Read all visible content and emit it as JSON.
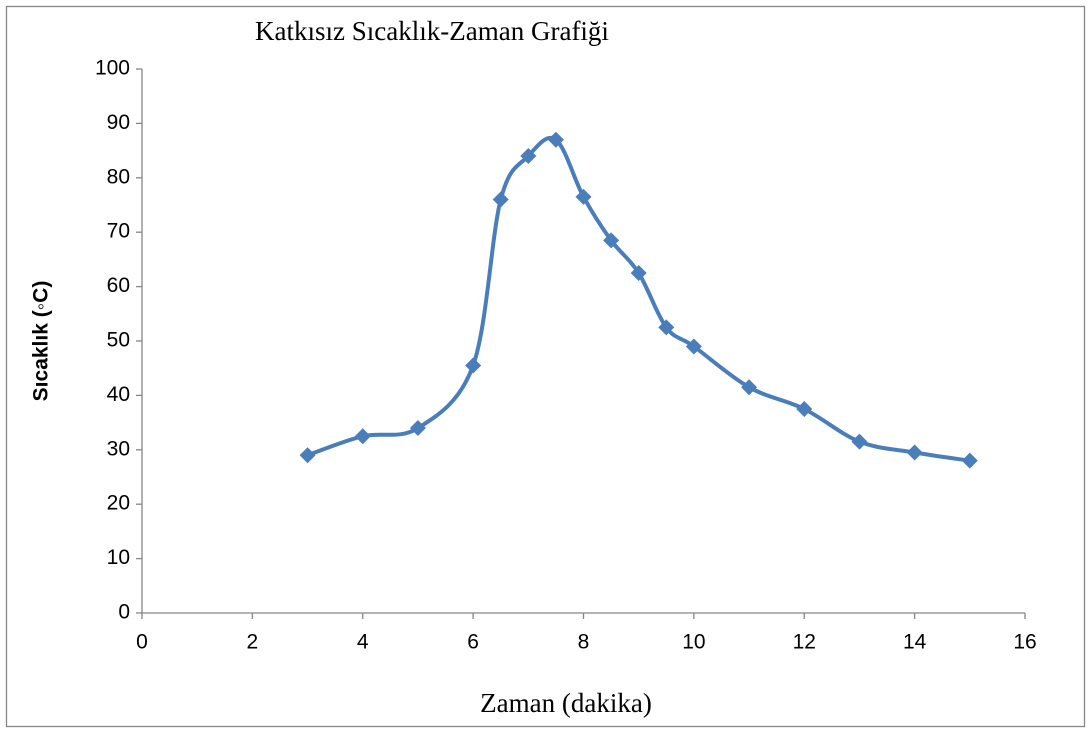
{
  "chart_data": {
    "type": "scatter",
    "title": "Katkısız Sıcaklık-Zaman Grafiği",
    "x_label": "Zaman (dakika)",
    "y_label": "Sıcaklık (◦C)",
    "series": [
      {
        "name": "Sıcaklık",
        "color": "#4a7ebb",
        "x": [
          3,
          4,
          5,
          6,
          6.5,
          7,
          7.5,
          8,
          8.5,
          9,
          9.5,
          10,
          11,
          12,
          13,
          14,
          15
        ],
        "values": [
          29,
          32.5,
          34,
          45.5,
          76,
          84,
          87,
          76.5,
          68.5,
          62.5,
          52.5,
          49,
          41.5,
          37.5,
          31.5,
          29.5,
          28
        ]
      }
    ],
    "smooth": true,
    "marker": "diamond",
    "xlim": [
      0,
      16
    ],
    "xticks": [
      0,
      2,
      4,
      6,
      8,
      10,
      12,
      14,
      16
    ],
    "ylim": [
      0,
      100
    ],
    "yticks": [
      0,
      10,
      20,
      30,
      40,
      50,
      60,
      70,
      80,
      90,
      100
    ]
  }
}
